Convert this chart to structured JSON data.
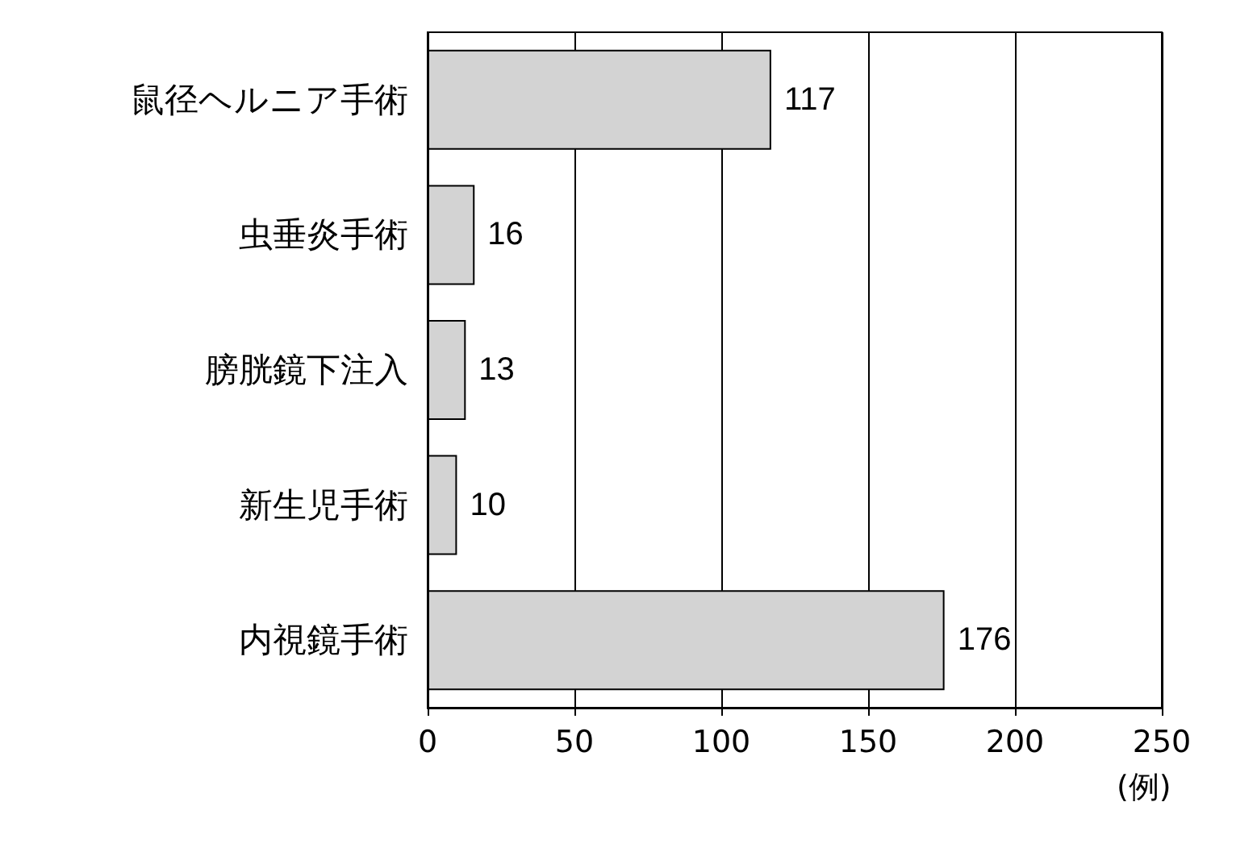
{
  "chart_data": {
    "type": "bar",
    "orientation": "horizontal",
    "categories": [
      "鼠径ヘルニア手術",
      "虫垂炎手術",
      "膀胱鏡下注入",
      "新生児手術",
      "内視鏡手術"
    ],
    "values": [
      117,
      16,
      13,
      10,
      176
    ],
    "color": "#d3d3d3",
    "xlim": [
      0,
      250
    ],
    "xticks": [
      0,
      50,
      100,
      150,
      200,
      250
    ],
    "xlabel": "(例)",
    "grid": "x",
    "data_labels": true
  }
}
